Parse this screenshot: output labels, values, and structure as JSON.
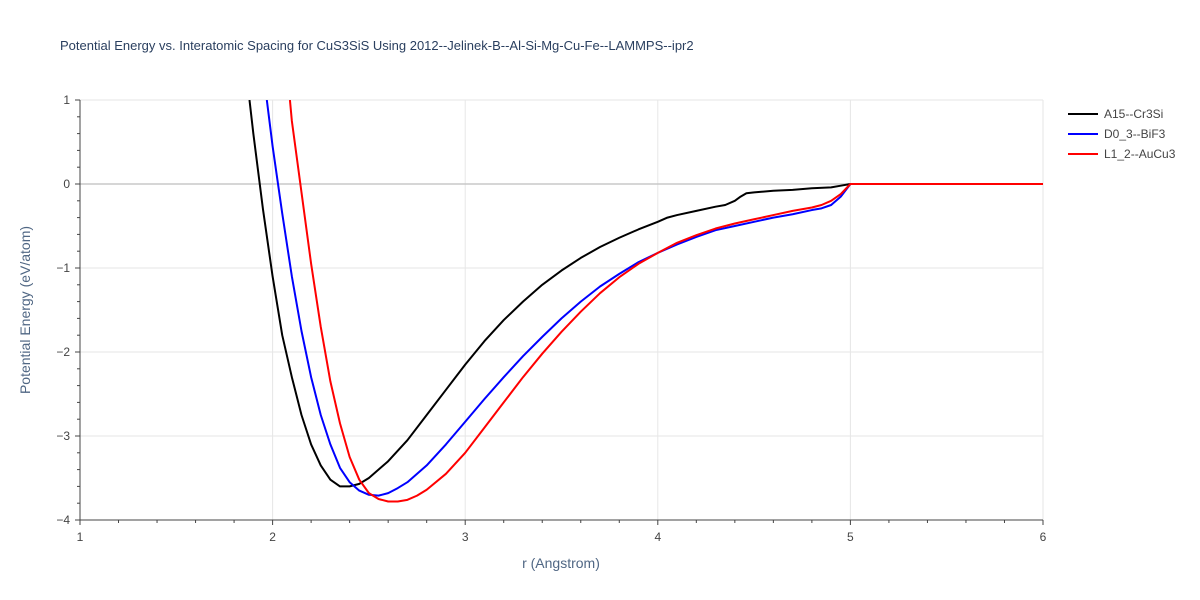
{
  "chart_data": {
    "type": "line",
    "title": "Potential Energy vs. Interatomic Spacing for CuS3SiS Using 2012--Jelinek-B--Al-Si-Mg-Cu-Fe--LAMMPS--ipr2",
    "xlabel": "r (Angstrom)",
    "ylabel": "Potential Energy (eV/atom)",
    "xlim": [
      1,
      6
    ],
    "ylim": [
      -4,
      1
    ],
    "x_ticks": [
      1,
      2,
      3,
      4,
      5,
      6
    ],
    "y_ticks": [
      1,
      0,
      -1,
      -2,
      -3,
      -4
    ],
    "x_tick_labels": [
      "1",
      "2",
      "3",
      "4",
      "5",
      "6"
    ],
    "y_tick_labels": [
      "1",
      "0",
      "−1",
      "−2",
      "−3",
      "−4"
    ],
    "grid": true,
    "legend_position": "top-right",
    "series": [
      {
        "name": "A15--Cr3Si",
        "color": "#000000",
        "x": [
          1.88,
          1.9,
          1.95,
          2.0,
          2.05,
          2.1,
          2.15,
          2.2,
          2.25,
          2.3,
          2.35,
          2.4,
          2.45,
          2.5,
          2.6,
          2.7,
          2.8,
          2.9,
          3.0,
          3.1,
          3.2,
          3.3,
          3.4,
          3.5,
          3.6,
          3.7,
          3.8,
          3.9,
          4.0,
          4.05,
          4.1,
          4.2,
          4.3,
          4.35,
          4.4,
          4.43,
          4.46,
          4.5,
          4.6,
          4.7,
          4.8,
          4.9,
          4.95,
          5.0,
          5.5,
          6.0
        ],
        "y": [
          1.0,
          0.6,
          -0.3,
          -1.1,
          -1.8,
          -2.3,
          -2.75,
          -3.1,
          -3.35,
          -3.52,
          -3.6,
          -3.6,
          -3.57,
          -3.5,
          -3.3,
          -3.05,
          -2.75,
          -2.45,
          -2.15,
          -1.87,
          -1.62,
          -1.4,
          -1.2,
          -1.03,
          -0.88,
          -0.75,
          -0.64,
          -0.54,
          -0.45,
          -0.4,
          -0.37,
          -0.32,
          -0.27,
          -0.25,
          -0.2,
          -0.15,
          -0.11,
          -0.1,
          -0.08,
          -0.07,
          -0.05,
          -0.04,
          -0.02,
          0.0,
          0.0,
          0.0
        ]
      },
      {
        "name": "D0_3--BiF3",
        "color": "#0000ff",
        "x": [
          1.97,
          2.0,
          2.05,
          2.1,
          2.15,
          2.2,
          2.25,
          2.3,
          2.35,
          2.4,
          2.45,
          2.5,
          2.55,
          2.6,
          2.65,
          2.7,
          2.8,
          2.9,
          3.0,
          3.1,
          3.2,
          3.3,
          3.4,
          3.5,
          3.6,
          3.7,
          3.8,
          3.9,
          4.0,
          4.1,
          4.2,
          4.3,
          4.4,
          4.5,
          4.6,
          4.7,
          4.8,
          4.85,
          4.9,
          4.95,
          5.0,
          5.5,
          6.0
        ],
        "y": [
          1.0,
          0.45,
          -0.35,
          -1.1,
          -1.75,
          -2.3,
          -2.75,
          -3.1,
          -3.38,
          -3.55,
          -3.65,
          -3.7,
          -3.71,
          -3.68,
          -3.62,
          -3.55,
          -3.35,
          -3.1,
          -2.83,
          -2.56,
          -2.3,
          -2.05,
          -1.82,
          -1.6,
          -1.4,
          -1.22,
          -1.07,
          -0.93,
          -0.82,
          -0.72,
          -0.63,
          -0.55,
          -0.5,
          -0.45,
          -0.4,
          -0.36,
          -0.31,
          -0.29,
          -0.25,
          -0.15,
          0.0,
          0.0,
          0.0
        ]
      },
      {
        "name": "L1_2--AuCu3",
        "color": "#ff0000",
        "x": [
          2.09,
          2.1,
          2.15,
          2.2,
          2.25,
          2.3,
          2.35,
          2.4,
          2.45,
          2.5,
          2.55,
          2.6,
          2.65,
          2.7,
          2.75,
          2.8,
          2.9,
          3.0,
          3.1,
          3.2,
          3.3,
          3.4,
          3.5,
          3.6,
          3.7,
          3.8,
          3.9,
          4.0,
          4.1,
          4.2,
          4.3,
          4.4,
          4.5,
          4.6,
          4.7,
          4.8,
          4.85,
          4.9,
          4.95,
          5.0,
          5.5,
          6.0
        ],
        "y": [
          1.0,
          0.75,
          -0.1,
          -0.95,
          -1.7,
          -2.35,
          -2.85,
          -3.25,
          -3.52,
          -3.68,
          -3.75,
          -3.78,
          -3.78,
          -3.76,
          -3.71,
          -3.64,
          -3.45,
          -3.2,
          -2.9,
          -2.6,
          -2.3,
          -2.02,
          -1.76,
          -1.52,
          -1.3,
          -1.11,
          -0.95,
          -0.82,
          -0.7,
          -0.61,
          -0.53,
          -0.47,
          -0.42,
          -0.37,
          -0.32,
          -0.28,
          -0.25,
          -0.2,
          -0.12,
          0.0,
          0.0,
          0.0
        ]
      }
    ]
  }
}
